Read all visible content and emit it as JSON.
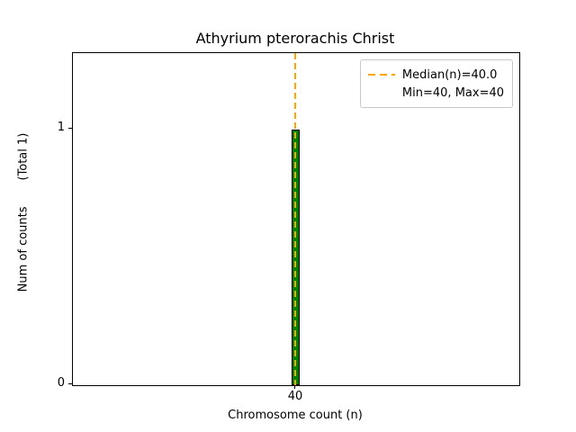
{
  "figure": {
    "title": "Athyrium pterorachis Christ",
    "xlabel": "Chromosome count (n)",
    "ylabel": "Num of counts       (Total 1)",
    "yticks": [
      "1",
      "0"
    ],
    "xticks": [
      "40"
    ],
    "legend": {
      "entries": [
        "Median(n)=40.0",
        "Min=40, Max=40"
      ]
    },
    "colors": {
      "bar_fill": "#008000",
      "bar_edge": "#000000",
      "median_line": "#ffa500",
      "axes_edge": "#000000",
      "legend_edge": "#c8c8c8",
      "background": "#ffffff"
    }
  },
  "chart_data": {
    "type": "bar",
    "title": "Athyrium pterorachis Christ",
    "xlabel": "Chromosome count (n)",
    "ylabel": "Num of counts (Total 1)",
    "categories": [
      40
    ],
    "values": [
      1
    ],
    "total_counts": 1,
    "median_n": 40.0,
    "min_n": 40,
    "max_n": 40,
    "yticks": [
      0,
      1
    ],
    "ylim": [
      0,
      1.3
    ],
    "grid": false,
    "legend_position": "upper right",
    "legend_entries": [
      "Median(n)=40.0",
      "Min=40, Max=40"
    ],
    "bar_color": "green",
    "bar_edge_color": "black",
    "median_line": {
      "value": 40.0,
      "color": "orange",
      "style": "dashed",
      "orientation": "vertical"
    }
  }
}
